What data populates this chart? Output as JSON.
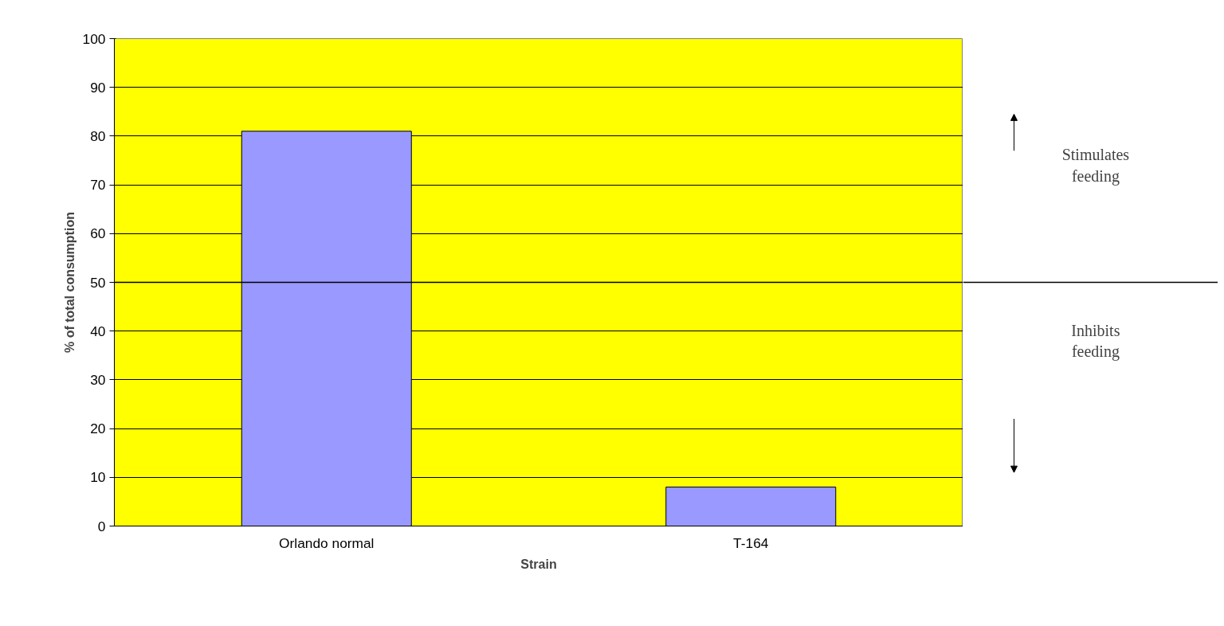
{
  "chart_data": {
    "type": "bar",
    "xlabel": "Strain",
    "ylabel": "% of total consumption",
    "categories": [
      "Orlando normal",
      "T-164"
    ],
    "series": [
      {
        "color": "#9999ff",
        "values": [
          81,
          8
        ]
      }
    ],
    "ylim": [
      0,
      100
    ],
    "yticks": [
      0,
      10,
      20,
      30,
      40,
      50,
      60,
      70,
      80,
      90,
      100
    ],
    "grid": "y",
    "ref_lines": [
      {
        "axis": "y",
        "value": 50,
        "color": "#000000"
      }
    ],
    "annotations": [
      "Stimulates feeding",
      "Inhibits feeding"
    ]
  }
}
